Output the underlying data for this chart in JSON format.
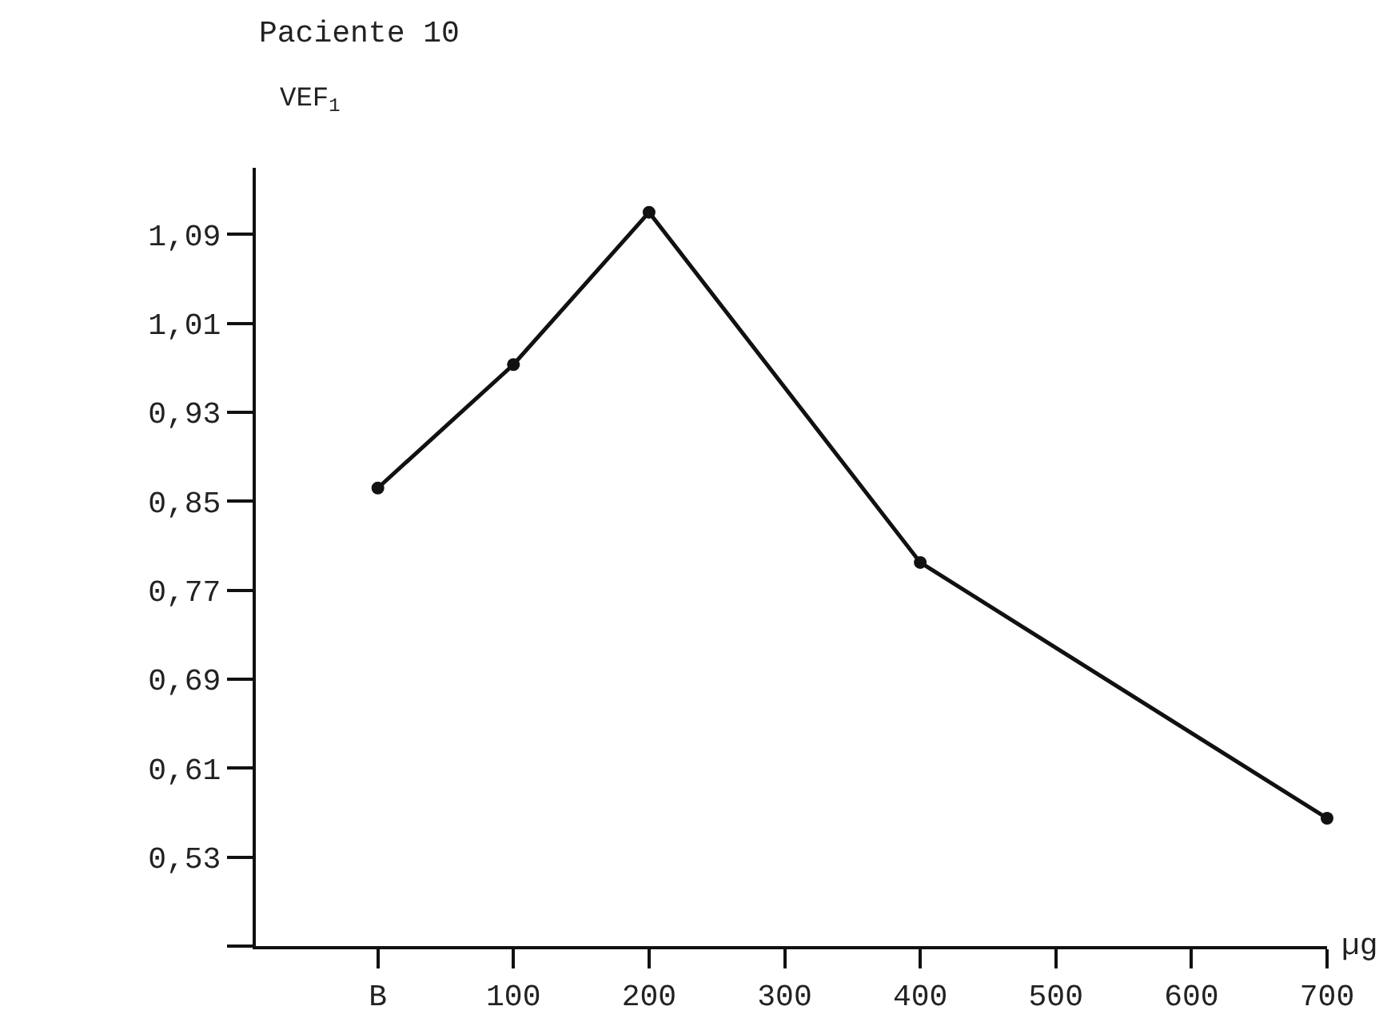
{
  "chart_data": {
    "type": "line",
    "title": "Paciente 10",
    "ylabel": "VEF$_{1}$",
    "xlabel": "µg",
    "x": [
      0,
      100,
      200,
      400,
      700
    ],
    "series": [
      {
        "color": "#111111",
        "values": [
          0.862,
          0.973,
          1.11,
          0.795,
          0.565
        ]
      }
    ],
    "xlim": [
      -90,
      700
    ],
    "xticks": [
      {
        "value": 0,
        "label": "B"
      },
      100,
      200,
      300,
      400,
      500,
      600,
      700
    ],
    "ylim": [
      0.45,
      1.15
    ],
    "yticks": [
      {
        "value": 0.45,
        "label": null
      },
      {
        "value": 0.53,
        "label": "0,53"
      },
      {
        "value": 0.61,
        "label": "0,61"
      },
      {
        "value": 0.69,
        "label": "0,69"
      },
      {
        "value": 0.77,
        "label": "0,77"
      },
      {
        "value": 0.85,
        "label": "0,85"
      },
      {
        "value": 0.93,
        "label": "0,93"
      },
      {
        "value": 1.01,
        "label": "1,01"
      },
      {
        "value": 1.09,
        "label": "1,09"
      }
    ],
    "marker": "circle",
    "line_style": "solid"
  }
}
